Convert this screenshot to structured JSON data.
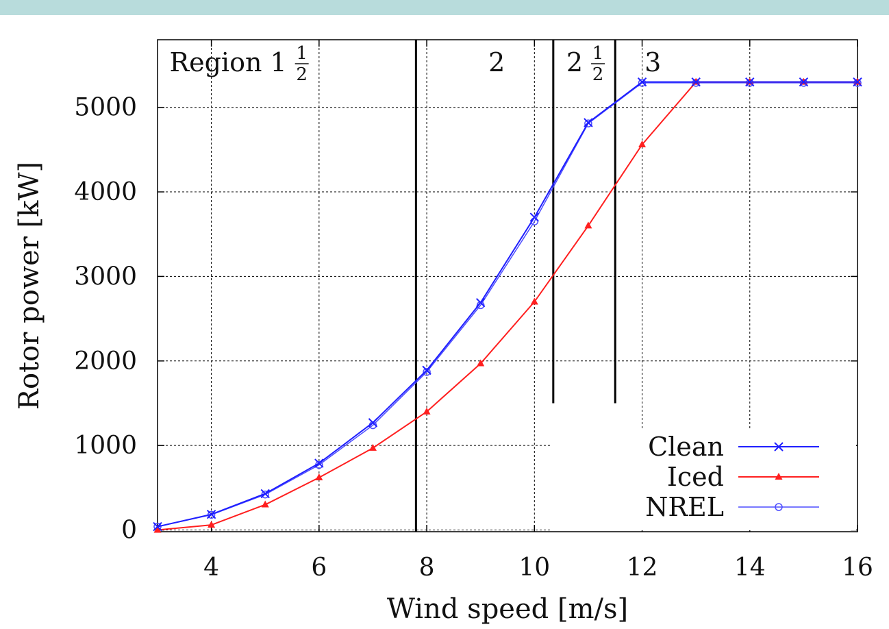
{
  "theme": {
    "topbar_color": "#b8dcdc",
    "clean_color": "#1f1fff",
    "iced_color": "#ff1f1f",
    "nrel_color": "#4d4dff",
    "grid_color": "#000000",
    "region_line_color": "#000000"
  },
  "chart_data": {
    "type": "line",
    "xlabel": "Wind speed [m/s]",
    "ylabel": "Rotor power [kW]",
    "xlim": [
      3,
      16
    ],
    "ylim": [
      -20,
      5800
    ],
    "x_ticks": [
      4,
      6,
      8,
      10,
      12,
      14,
      16
    ],
    "y_ticks": [
      0,
      1000,
      2000,
      3000,
      4000,
      5000
    ],
    "grid": true,
    "legend_position": "bottom-right",
    "regions": [
      {
        "label": "Region 1",
        "fraction": {
          "num": "1",
          "den": "2"
        },
        "x_center": 5.4
      },
      {
        "label": "2",
        "fraction": null,
        "x_center": 9.3
      },
      {
        "label": "2",
        "fraction": {
          "num": "1",
          "den": "2"
        },
        "x_center": 10.9
      },
      {
        "label": "3",
        "fraction": null,
        "x_center": 12.2
      }
    ],
    "region_boundaries": [
      {
        "x": 7.8,
        "y_bottom": -20
      },
      {
        "x": 10.35,
        "y_bottom": 1500
      },
      {
        "x": 11.5,
        "y_bottom": 1500
      }
    ],
    "series": [
      {
        "name": "Clean",
        "marker": "x",
        "x": [
          3,
          4,
          5,
          6,
          7,
          8,
          9,
          10,
          11,
          12,
          13,
          14,
          15,
          16
        ],
        "y": [
          40,
          185,
          430,
          790,
          1270,
          1890,
          2690,
          3700,
          4820,
          5300,
          5300,
          5300,
          5300,
          5300
        ]
      },
      {
        "name": "Iced",
        "marker": "triangle",
        "x": [
          3,
          4,
          5,
          6,
          7,
          8,
          9,
          10,
          11,
          12,
          13,
          14,
          15,
          16
        ],
        "y": [
          0,
          60,
          300,
          620,
          970,
          1400,
          1970,
          2700,
          3600,
          4560,
          5300,
          5300,
          5300,
          5300
        ]
      },
      {
        "name": "NREL",
        "marker": "circle",
        "x": [
          3,
          4,
          5,
          6,
          7,
          8,
          9,
          10,
          11,
          12,
          13,
          14,
          15,
          16
        ],
        "y": [
          40,
          180,
          420,
          770,
          1240,
          1870,
          2660,
          3650,
          4810,
          5290,
          5290,
          5290,
          5290,
          5290
        ]
      }
    ]
  }
}
